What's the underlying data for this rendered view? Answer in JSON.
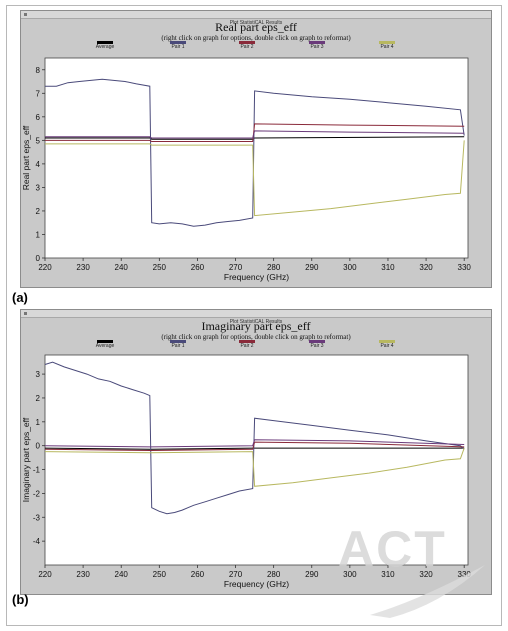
{
  "panel_a_label": "(a)",
  "panel_b_label": "(b)",
  "watermark": "ACT",
  "windows": [
    {
      "window_title": "Plot StatistiCAL Results",
      "title": "Real part eps_eff",
      "subtitle": "(right click on graph for options, double click on graph to reformat)",
      "xlabel": "Frequency (GHz)",
      "ylabel": "Real part eps_eff"
    },
    {
      "window_title": "Plot StatistiCAL Results",
      "title": "Imaginary part eps_eff",
      "subtitle": "(right click on graph for options, double click on graph to reformat)",
      "xlabel": "Frequency (GHz)",
      "ylabel": "Imaginary part eps_eff"
    }
  ],
  "chart_data": [
    {
      "type": "line",
      "title": "Real part eps_eff",
      "subtitle": "(right click on graph for options, double click on graph to reformat)",
      "xlabel": "Frequency (GHz)",
      "ylabel": "Real part eps_eff",
      "xlim": [
        220,
        331
      ],
      "ylim": [
        0,
        8.5
      ],
      "xticks": [
        220,
        230,
        240,
        250,
        260,
        270,
        280,
        290,
        300,
        310,
        320,
        330
      ],
      "yticks": [
        0,
        1,
        2,
        3,
        4,
        5,
        6,
        7,
        8
      ],
      "legend_position": "top",
      "series": [
        {
          "name": "Average",
          "color": "#000000",
          "x": [
            220,
            247.5,
            248,
            274.5,
            275,
            330
          ],
          "y": [
            5.1,
            5.1,
            5.05,
            5.05,
            5.1,
            5.15
          ]
        },
        {
          "name": "Pair 1",
          "color": "#4a4a7a",
          "x": [
            220,
            223,
            226,
            229,
            232,
            235,
            238,
            241,
            244,
            247.5,
            248,
            250,
            253,
            256,
            259,
            262,
            265,
            268,
            271,
            274.5,
            275,
            280,
            290,
            300,
            310,
            320,
            329,
            330
          ],
          "y": [
            7.3,
            7.3,
            7.45,
            7.5,
            7.55,
            7.6,
            7.55,
            7.5,
            7.4,
            7.3,
            1.5,
            1.45,
            1.5,
            1.45,
            1.35,
            1.4,
            1.5,
            1.55,
            1.6,
            1.7,
            7.1,
            7.0,
            6.85,
            6.75,
            6.6,
            6.45,
            6.3,
            5.2
          ]
        },
        {
          "name": "Pair 2",
          "color": "#8a2a3a",
          "x": [
            220,
            247.5,
            248,
            274.5,
            275,
            300,
            330
          ],
          "y": [
            5.0,
            5.0,
            4.95,
            4.95,
            5.7,
            5.65,
            5.6
          ]
        },
        {
          "name": "Pair 3",
          "color": "#6a3a7a",
          "x": [
            220,
            247.5,
            248,
            274.5,
            275,
            300,
            330
          ],
          "y": [
            5.15,
            5.15,
            5.1,
            5.1,
            5.4,
            5.35,
            5.3
          ]
        },
        {
          "name": "Pair 4",
          "color": "#b8b860",
          "x": [
            220,
            247.5,
            248,
            274.5,
            275,
            285,
            295,
            305,
            315,
            325,
            329,
            330
          ],
          "y": [
            4.85,
            4.85,
            4.8,
            4.8,
            1.8,
            1.95,
            2.1,
            2.3,
            2.5,
            2.7,
            2.75,
            5.0
          ]
        }
      ]
    },
    {
      "type": "line",
      "title": "Imaginary part eps_eff",
      "subtitle": "(right click on graph for options, double click on graph to reformat)",
      "xlabel": "Frequency (GHz)",
      "ylabel": "Imaginary part eps_eff",
      "xlim": [
        220,
        331
      ],
      "ylim": [
        -5,
        3.8
      ],
      "xticks": [
        220,
        230,
        240,
        250,
        260,
        270,
        280,
        290,
        300,
        310,
        320,
        330
      ],
      "yticks": [
        -4,
        -3,
        -2,
        -1,
        0,
        1,
        2,
        3
      ],
      "legend_position": "top",
      "series": [
        {
          "name": "Average",
          "color": "#000000",
          "x": [
            220,
            247.5,
            248,
            274.5,
            275,
            330
          ],
          "y": [
            -0.1,
            -0.15,
            -0.15,
            -0.1,
            -0.1,
            -0.1
          ]
        },
        {
          "name": "Pair 1",
          "color": "#4a4a7a",
          "x": [
            220,
            222,
            225,
            228,
            231,
            234,
            237,
            240,
            243,
            246,
            247.5,
            248,
            250,
            252,
            254,
            256,
            259,
            262,
            265,
            268,
            271,
            274.5,
            275,
            280,
            290,
            300,
            310,
            320,
            329,
            330
          ],
          "y": [
            3.4,
            3.5,
            3.3,
            3.15,
            3.0,
            2.8,
            2.7,
            2.5,
            2.35,
            2.2,
            2.1,
            -2.6,
            -2.75,
            -2.85,
            -2.8,
            -2.7,
            -2.5,
            -2.35,
            -2.2,
            -2.05,
            -1.9,
            -1.8,
            1.15,
            1.05,
            0.85,
            0.65,
            0.45,
            0.2,
            0.0,
            -0.15
          ]
        },
        {
          "name": "Pair 2",
          "color": "#8a2a3a",
          "x": [
            220,
            247.5,
            248,
            274.5,
            275,
            300,
            330
          ],
          "y": [
            -0.15,
            -0.2,
            -0.2,
            -0.15,
            0.15,
            0.1,
            -0.05
          ]
        },
        {
          "name": "Pair 3",
          "color": "#6a3a7a",
          "x": [
            220,
            247.5,
            248,
            274.5,
            275,
            300,
            330
          ],
          "y": [
            0.0,
            -0.05,
            -0.05,
            0.0,
            0.25,
            0.2,
            0.05
          ]
        },
        {
          "name": "Pair 4",
          "color": "#b8b860",
          "x": [
            220,
            247.5,
            248,
            274.5,
            275,
            285,
            295,
            305,
            315,
            325,
            329,
            330
          ],
          "y": [
            -0.25,
            -0.3,
            -0.3,
            -0.25,
            -1.7,
            -1.55,
            -1.35,
            -1.15,
            -0.9,
            -0.6,
            -0.55,
            -0.1
          ]
        }
      ]
    }
  ]
}
